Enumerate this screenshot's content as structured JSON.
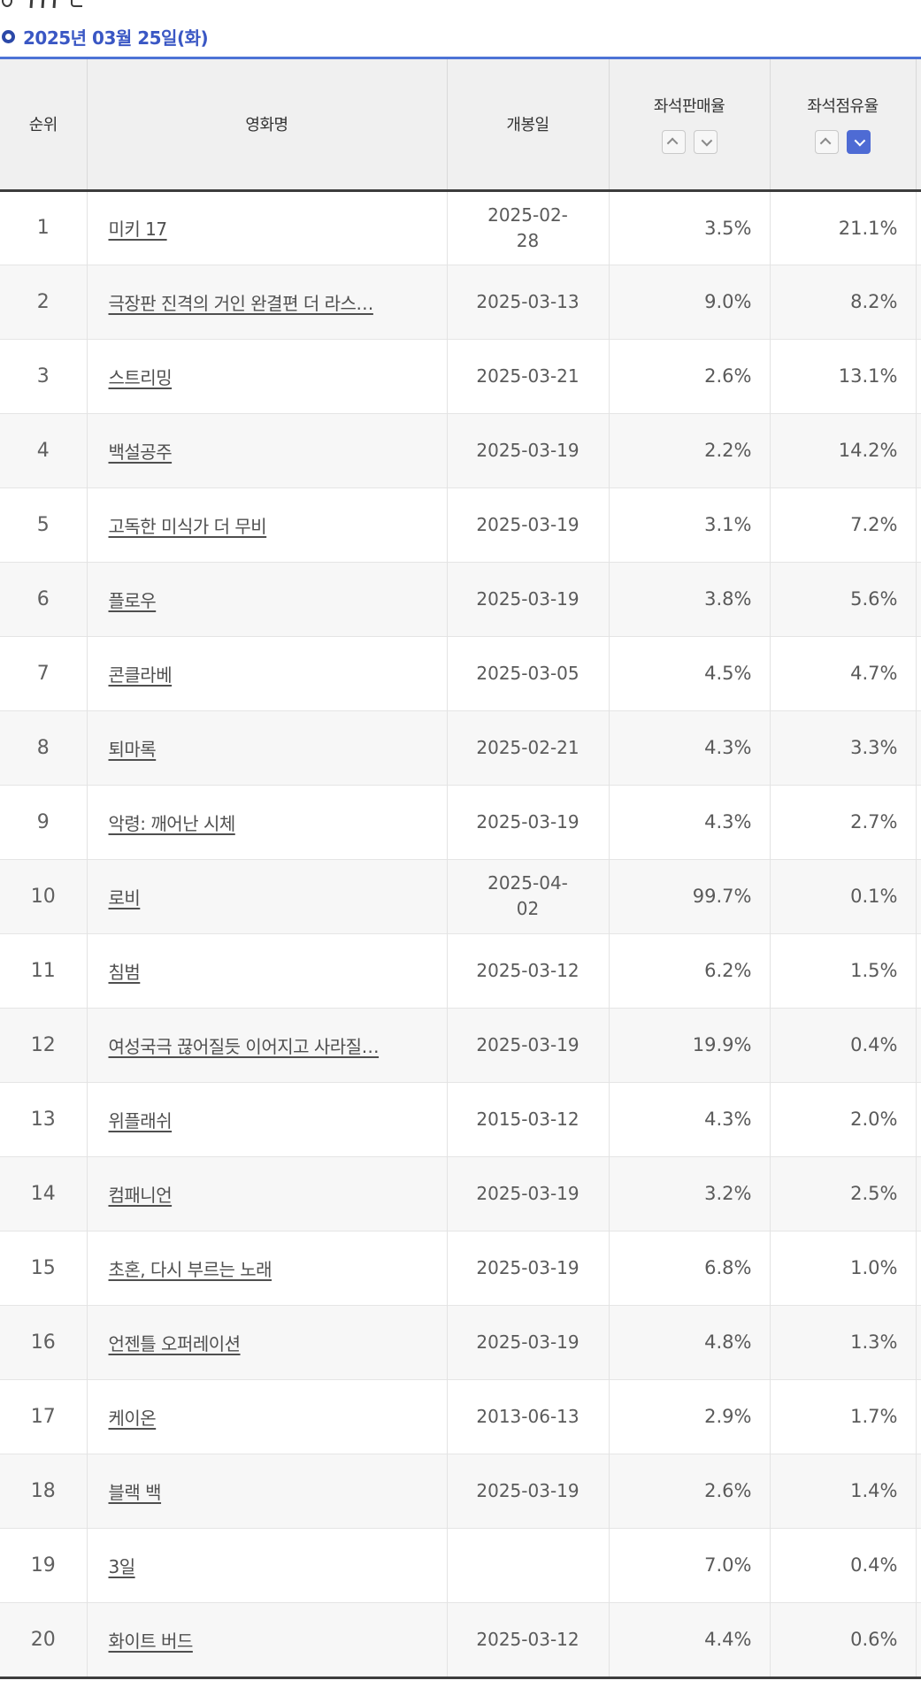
{
  "page": {
    "date_heading": "2025년 03월 25일(화)"
  },
  "colors": {
    "table_top_border": "#4d73d6",
    "heading_blue": "#3a57c4",
    "active_sort_blue": "#4e6bd4",
    "header_bg": "#f0f0f0",
    "zebra_row_bg": "#f7f7f7"
  },
  "table": {
    "columns": [
      {
        "key": "rank",
        "label": "순위",
        "sortable": false,
        "sort_state": null
      },
      {
        "key": "title",
        "label": "영화명",
        "sortable": false,
        "sort_state": null
      },
      {
        "key": "release",
        "label": "개봉일",
        "sortable": false,
        "sort_state": null
      },
      {
        "key": "sales",
        "label": "좌석판매율",
        "sortable": true,
        "sort_state": "none"
      },
      {
        "key": "occupancy",
        "label": "좌석점유율",
        "sortable": true,
        "sort_state": "desc"
      }
    ],
    "sort_icons": {
      "asc": "chevron-up-icon",
      "desc": "chevron-down-icon"
    },
    "rows": [
      {
        "rank": "1",
        "title": "미키 17",
        "release": "2025-02-\n28",
        "sales": "3.5%",
        "occupancy": "21.1%"
      },
      {
        "rank": "2",
        "title": "극장판 진격의 거인 완결편 더 라스…",
        "release": "2025-03-13",
        "sales": "9.0%",
        "occupancy": "8.2%"
      },
      {
        "rank": "3",
        "title": "스트리밍",
        "release": "2025-03-21",
        "sales": "2.6%",
        "occupancy": "13.1%"
      },
      {
        "rank": "4",
        "title": "백설공주",
        "release": "2025-03-19",
        "sales": "2.2%",
        "occupancy": "14.2%"
      },
      {
        "rank": "5",
        "title": "고독한 미식가 더 무비",
        "release": "2025-03-19",
        "sales": "3.1%",
        "occupancy": "7.2%"
      },
      {
        "rank": "6",
        "title": "플로우",
        "release": "2025-03-19",
        "sales": "3.8%",
        "occupancy": "5.6%"
      },
      {
        "rank": "7",
        "title": "콘클라베",
        "release": "2025-03-05",
        "sales": "4.5%",
        "occupancy": "4.7%"
      },
      {
        "rank": "8",
        "title": "퇴마록",
        "release": "2025-02-21",
        "sales": "4.3%",
        "occupancy": "3.3%"
      },
      {
        "rank": "9",
        "title": "악령: 깨어난 시체",
        "release": "2025-03-19",
        "sales": "4.3%",
        "occupancy": "2.7%"
      },
      {
        "rank": "10",
        "title": "로비",
        "release": "2025-04-\n02",
        "sales": "99.7%",
        "occupancy": "0.1%"
      },
      {
        "rank": "11",
        "title": "침범",
        "release": "2025-03-12",
        "sales": "6.2%",
        "occupancy": "1.5%"
      },
      {
        "rank": "12",
        "title": "여성국극 끊어질듯 이어지고 사라질…",
        "release": "2025-03-19",
        "sales": "19.9%",
        "occupancy": "0.4%"
      },
      {
        "rank": "13",
        "title": "위플래쉬",
        "release": "2015-03-12",
        "sales": "4.3%",
        "occupancy": "2.0%"
      },
      {
        "rank": "14",
        "title": "컴패니언",
        "release": "2025-03-19",
        "sales": "3.2%",
        "occupancy": "2.5%"
      },
      {
        "rank": "15",
        "title": "초혼, 다시 부르는 노래",
        "release": "2025-03-19",
        "sales": "6.8%",
        "occupancy": "1.0%"
      },
      {
        "rank": "16",
        "title": "언젠틀 오퍼레이션",
        "release": "2025-03-19",
        "sales": "4.8%",
        "occupancy": "1.3%"
      },
      {
        "rank": "17",
        "title": "케이온",
        "release": "2013-06-13",
        "sales": "2.9%",
        "occupancy": "1.7%"
      },
      {
        "rank": "18",
        "title": "블랙 백",
        "release": "2025-03-19",
        "sales": "2.6%",
        "occupancy": "1.4%"
      },
      {
        "rank": "19",
        "title": "3일",
        "release": "",
        "sales": "7.0%",
        "occupancy": "0.4%"
      },
      {
        "rank": "20",
        "title": "화이트 버드",
        "release": "2025-03-12",
        "sales": "4.4%",
        "occupancy": "0.6%"
      }
    ]
  }
}
